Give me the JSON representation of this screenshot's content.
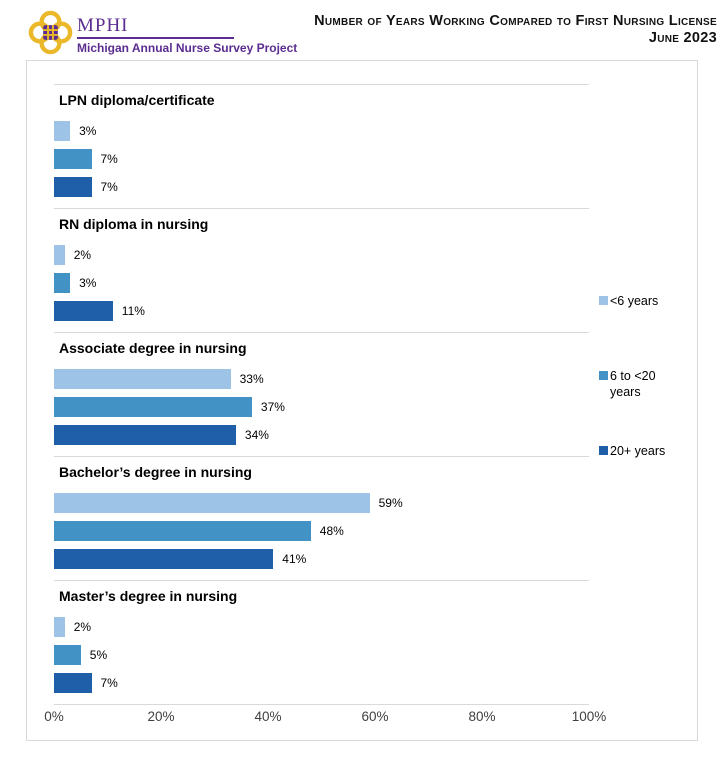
{
  "header": {
    "logo_org": "MPHI",
    "logo_subtitle": "Michigan Annual Nurse Survey Project",
    "title_line1": "Number of Years Working Compared to First Nursing License",
    "title_line2": "June 2023"
  },
  "colors": {
    "brand_purple": "#5C2D91",
    "brand_gold": "#EAB829",
    "series_lt6": "#9DC3E6",
    "series_6to20": "#4292C6",
    "series_20plus": "#1F5FA9",
    "gridline": "#D9D9D9"
  },
  "chart_data": {
    "type": "bar",
    "orientation": "horizontal",
    "title": "Number of Years Working Compared to First Nursing License",
    "subtitle": "June 2023",
    "categories": [
      "LPN diploma/certificate",
      "RN diploma in nursing",
      "Associate degree in nursing",
      "Bachelor’s degree in nursing",
      "Master’s degree in nursing"
    ],
    "series": [
      {
        "name": "<6 years",
        "color": "#9DC3E6",
        "values": [
          3,
          2,
          33,
          59,
          2
        ]
      },
      {
        "name": "6 to <20 years",
        "color": "#4292C6",
        "values": [
          7,
          3,
          37,
          48,
          5
        ]
      },
      {
        "name": "20+ years",
        "color": "#1F5FA9",
        "values": [
          7,
          11,
          34,
          41,
          7
        ]
      }
    ],
    "value_suffix": "%",
    "xlim": [
      0,
      100
    ],
    "x_ticks": [
      "0%",
      "20%",
      "40%",
      "60%",
      "80%",
      "100%"
    ],
    "grid": "horizontal-category-separators",
    "legend_position": "right",
    "data_labels": "outside-end"
  },
  "legend": {
    "items": [
      {
        "label": "<6 years",
        "color": "#9DC3E6"
      },
      {
        "label": "6 to <20 years",
        "color": "#4292C6"
      },
      {
        "label": "20+ years",
        "color": "#1F5FA9"
      }
    ]
  }
}
